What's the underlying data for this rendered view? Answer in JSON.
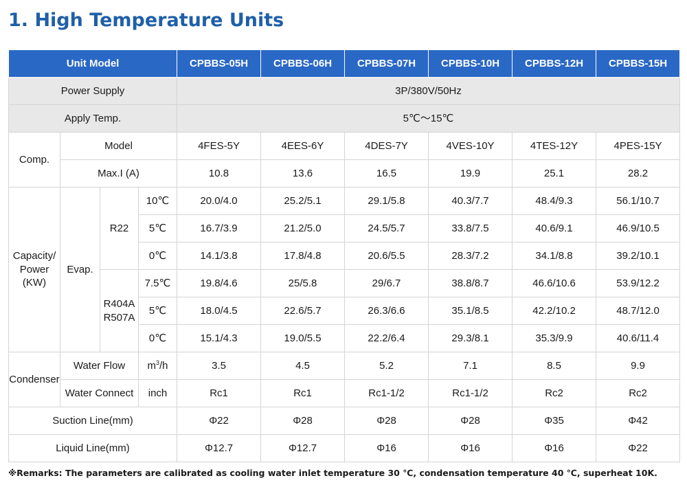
{
  "title": "1. High Temperature Units",
  "header": {
    "unit_model": "Unit Model",
    "models": [
      "CPBBS-05H",
      "CPBBS-06H",
      "CPBBS-07H",
      "CPBBS-10H",
      "CPBBS-12H",
      "CPBBS-15H"
    ]
  },
  "power_supply": {
    "label": "Power Supply",
    "value": "3P/380V/50Hz"
  },
  "apply_temp": {
    "label": "Apply Temp.",
    "value": "5℃～15℃"
  },
  "comp": {
    "label": "Comp.",
    "model_label": "Model",
    "models": [
      "4FES-5Y",
      "4EES-6Y",
      "4DES-7Y",
      "4VES-10Y",
      "4TES-12Y",
      "4PES-15Y"
    ],
    "maxi_label": "Max.I (A)",
    "maxi": [
      "10.8",
      "13.6",
      "16.5",
      "19.9",
      "25.1",
      "28.2"
    ]
  },
  "capacity": {
    "label_line1": "Capacity/",
    "label_line2": "Power",
    "label_line3": "(KW)",
    "evap_label": "Evap.",
    "r22": {
      "label": "R22",
      "rows": [
        {
          "temp": "10℃",
          "values": [
            "20.0/4.0",
            "25.2/5.1",
            "29.1/5.8",
            "40.3/7.7",
            "48.4/9.3",
            "56.1/10.7"
          ]
        },
        {
          "temp": "5℃",
          "values": [
            "16.7/3.9",
            "21.2/5.0",
            "24.5/5.7",
            "33.8/7.5",
            "40.6/9.1",
            "46.9/10.5"
          ]
        },
        {
          "temp": "0℃",
          "values": [
            "14.1/3.8",
            "17.8/4.8",
            "20.6/5.5",
            "28.3/7.2",
            "34.1/8.8",
            "39.2/10.1"
          ]
        }
      ]
    },
    "r404a": {
      "label_line1": "R404A",
      "label_line2": "R507A",
      "rows": [
        {
          "temp": "7.5℃",
          "values": [
            "19.8/4.6",
            "25/5.8",
            "29/6.7",
            "38.8/8.7",
            "46.6/10.6",
            "53.9/12.2"
          ]
        },
        {
          "temp": "5℃",
          "values": [
            "18.0/4.5",
            "22.6/5.7",
            "26.3/6.6",
            "35.1/8.5",
            "42.2/10.2",
            "48.7/12.0"
          ]
        },
        {
          "temp": "0℃",
          "values": [
            "15.1/4.3",
            "19.0/5.5",
            "22.2/6.4",
            "29.3/8.1",
            "35.3/9.9",
            "40.6/11.4"
          ]
        }
      ]
    }
  },
  "condenser": {
    "label": "Condenser",
    "water_flow_label": "Water Flow",
    "water_flow_unit_base": "m",
    "water_flow_unit_sup": "3",
    "water_flow_unit_tail": "/h",
    "water_flow": [
      "3.5",
      "4.5",
      "5.2",
      "7.1",
      "8.5",
      "9.9"
    ],
    "water_connect_label": "Water Connect",
    "water_connect_unit": "inch",
    "water_connect": [
      "Rc1",
      "Rc1",
      "Rc1-1/2",
      "Rc1-1/2",
      "Rc2",
      "Rc2"
    ]
  },
  "suction": {
    "label": "Suction Line(mm)",
    "values": [
      "Φ22",
      "Φ28",
      "Φ28",
      "Φ28",
      "Φ35",
      "Φ42"
    ]
  },
  "liquid": {
    "label": "Liquid Line(mm)",
    "values": [
      "Φ12.7",
      "Φ12.7",
      "Φ16",
      "Φ16",
      "Φ16",
      "Φ22"
    ]
  },
  "remarks": "※Remarks: The parameters are calibrated as cooling water inlet temperature 30 ℃, condensation temperature 40 ℃, superheat 10K.",
  "colors": {
    "title": "#1f5fa8",
    "header_bg": "#2a68c6",
    "grey_row": "#e8e8e8",
    "border": "#d4d4d4"
  }
}
